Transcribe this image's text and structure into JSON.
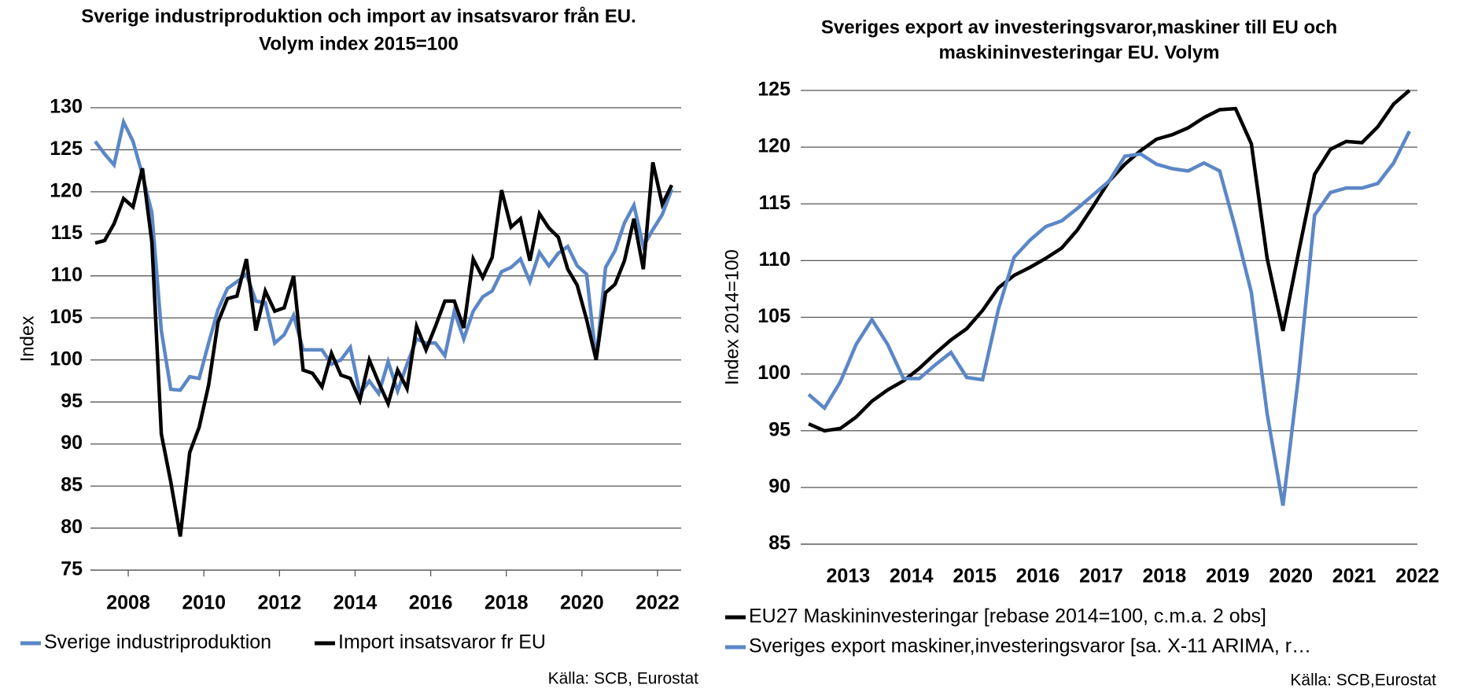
{
  "chart_data": [
    {
      "type": "line",
      "title": [
        "Sverige industriproduktion och import av insatsvaror från EU.",
        "Volym index 2015=100"
      ],
      "ylabel": "Index",
      "x": [
        2007.125,
        2007.375,
        2007.625,
        2007.875,
        2008.125,
        2008.375,
        2008.625,
        2008.875,
        2009.125,
        2009.375,
        2009.625,
        2009.875,
        2010.125,
        2010.375,
        2010.625,
        2010.875,
        2011.125,
        2011.375,
        2011.625,
        2011.875,
        2012.125,
        2012.375,
        2012.625,
        2012.875,
        2013.125,
        2013.375,
        2013.625,
        2013.875,
        2014.125,
        2014.375,
        2014.625,
        2014.875,
        2015.125,
        2015.375,
        2015.625,
        2015.875,
        2016.125,
        2016.375,
        2016.625,
        2016.875,
        2017.125,
        2017.375,
        2017.625,
        2017.875,
        2018.125,
        2018.375,
        2018.625,
        2018.875,
        2019.125,
        2019.375,
        2019.625,
        2019.875,
        2020.125,
        2020.375,
        2020.625,
        2020.875,
        2021.125,
        2021.375,
        2021.625,
        2021.875,
        2022.125,
        2022.375
      ],
      "series": [
        {
          "name": "Sverige industriproduktion",
          "color": "#5b87c7",
          "values": [
            126,
            124.5,
            123.2,
            128.3,
            126,
            122,
            117.5,
            103.5,
            96.5,
            96.4,
            98,
            97.8,
            102,
            106,
            108.5,
            109.3,
            110.2,
            107,
            106.8,
            102,
            103,
            105.3,
            101.2,
            101.2,
            101.2,
            99.5,
            100,
            101.5,
            96,
            97.5,
            96,
            99.8,
            96.3,
            99.5,
            102.5,
            102,
            102,
            100.5,
            105.8,
            102.5,
            105.8,
            107.5,
            108.2,
            110.5,
            111,
            112,
            109.3,
            112.8,
            111.2,
            112.7,
            113.5,
            111.2,
            110.2,
            100,
            111,
            113,
            116.3,
            118.4,
            113.5,
            115.5,
            117.3,
            120.3
          ]
        },
        {
          "name": "Import insatsvaror fr EU",
          "color": "#000000",
          "values": [
            113.9,
            114.2,
            116.2,
            119.2,
            118.2,
            122.8,
            114,
            91.2,
            85.5,
            79,
            89,
            92,
            97,
            104.5,
            107.3,
            107.6,
            112,
            103.5,
            108.2,
            105.8,
            106.2,
            110,
            98.8,
            98.4,
            96.8,
            100.8,
            98.2,
            97.8,
            95.2,
            100,
            97.3,
            94.8,
            98.8,
            96.6,
            104,
            101.2,
            104,
            107,
            107,
            103.8,
            112,
            109.8,
            112.2,
            120.2,
            115.8,
            116.8,
            111.8,
            117.4,
            115.7,
            114.6,
            110.8,
            108.9,
            104.8,
            100,
            108,
            109,
            111.8,
            116.8,
            110.8,
            123.5,
            118.5,
            120.8
          ]
        }
      ],
      "xlim": [
        2007,
        2022.625
      ],
      "xticks": [
        2008,
        2010,
        2012,
        2014,
        2016,
        2018,
        2020,
        2022
      ],
      "ylim": [
        75,
        130
      ],
      "yticks": [
        75,
        80,
        85,
        90,
        95,
        100,
        105,
        110,
        115,
        120,
        125,
        130
      ],
      "grid": true,
      "legend": "bottom",
      "source": "Källa: SCB, Eurostat"
    },
    {
      "type": "line",
      "title": [
        "Sveriges export av investeringsvaror,maskiner till EU och",
        "maskininvesteringar EU. Volym"
      ],
      "ylabel": "Index 2014=100",
      "x": [
        2012.875,
        2013.125,
        2013.375,
        2013.625,
        2013.875,
        2014.125,
        2014.375,
        2014.625,
        2014.875,
        2015.125,
        2015.375,
        2015.625,
        2015.875,
        2016.125,
        2016.375,
        2016.625,
        2016.875,
        2017.125,
        2017.375,
        2017.625,
        2017.875,
        2018.125,
        2018.375,
        2018.625,
        2018.875,
        2019.125,
        2019.375,
        2019.625,
        2019.875,
        2020.125,
        2020.375,
        2020.625,
        2020.875,
        2021.125,
        2021.375,
        2021.625,
        2021.875,
        2022.125,
        2022.375
      ],
      "series": [
        {
          "name": "EU27 Maskininvesteringar [rebase 2014=100, c.m.a. 2 obs]",
          "color": "#000000",
          "values": [
            95.6,
            95,
            95.2,
            96.2,
            97.6,
            98.6,
            99.4,
            100.5,
            101.8,
            103,
            104,
            105.6,
            107.6,
            108.7,
            109.4,
            110.2,
            111.1,
            112.7,
            114.8,
            117,
            118.5,
            119.7,
            120.7,
            121.1,
            121.7,
            122.6,
            123.3,
            123.4,
            120.3,
            110.2,
            103.8,
            110.8,
            117.6,
            119.8,
            120.5,
            120.4,
            121.8,
            123.8,
            125
          ]
        },
        {
          "name": "Sveriges export maskiner,investeringsvaror [sa. X-11 ARIMA, r…",
          "color": "#5b87c7",
          "values": [
            98.2,
            97,
            99.3,
            102.6,
            104.8,
            102.6,
            99.6,
            99.6,
            100.8,
            101.9,
            99.7,
            99.5,
            105.7,
            110.3,
            111.8,
            113,
            113.5,
            114.6,
            115.8,
            117,
            119.2,
            119.4,
            118.5,
            118.1,
            117.9,
            118.6,
            117.9,
            112.8,
            107.2,
            96.5,
            88.4,
            100,
            114,
            116,
            116.4,
            116.4,
            116.8,
            118.6,
            121.4
          ]
        }
      ],
      "xlim": [
        2012.75,
        2022.5
      ],
      "xticks": [
        {
          "value": 2013.5,
          "label": "2013"
        },
        {
          "value": 2014.5,
          "label": "2014"
        },
        {
          "value": 2015.5,
          "label": "2015"
        },
        {
          "value": 2016.5,
          "label": "2016"
        },
        {
          "value": 2017.5,
          "label": "2017"
        },
        {
          "value": 2018.5,
          "label": "2018"
        },
        {
          "value": 2019.5,
          "label": "2019"
        },
        {
          "value": 2020.5,
          "label": "2020"
        },
        {
          "value": 2021.5,
          "label": "2021"
        },
        {
          "value": 2022.5,
          "label": "2022"
        }
      ],
      "ylim": [
        85,
        125
      ],
      "yticks": [
        85,
        90,
        95,
        100,
        105,
        110,
        115,
        120,
        125
      ],
      "grid": true,
      "legend": "bottom",
      "source": "Källa: SCB,Eurostat"
    }
  ]
}
